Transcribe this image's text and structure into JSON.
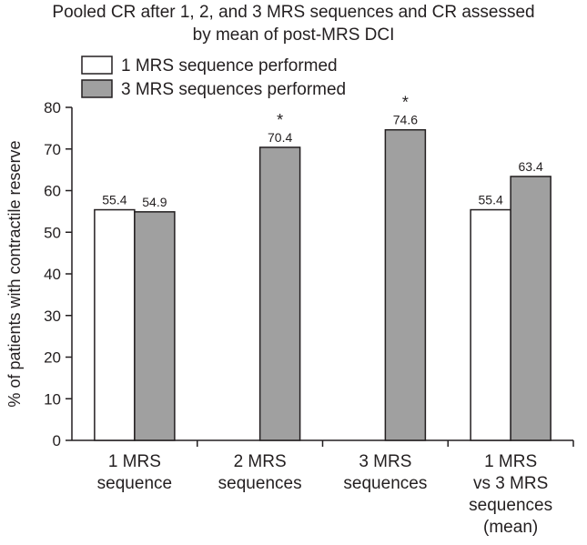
{
  "chart_data": {
    "type": "bar",
    "title": "Pooled CR after 1, 2, and 3 MRS sequences and CR assessed",
    "title_line2": "by mean of post-MRS DCI",
    "ylabel": "% of patients with contractile reserve",
    "xlabel": "",
    "ylim": [
      0,
      80
    ],
    "yticks": [
      0,
      10,
      20,
      30,
      40,
      50,
      60,
      70,
      80
    ],
    "grid": false,
    "legend_position": "top-left",
    "categories": [
      [
        "1 MRS",
        "sequence"
      ],
      [
        "2 MRS",
        "sequences"
      ],
      [
        "3 MRS",
        "sequences"
      ],
      [
        "1 MRS",
        "vs 3 MRS",
        "sequences",
        "(mean)"
      ]
    ],
    "series": [
      {
        "name": "1 MRS sequence performed",
        "color": "#ffffff",
        "values": [
          55.4,
          null,
          null,
          55.4
        ],
        "labels": [
          "55.4",
          "",
          "",
          "55.4"
        ]
      },
      {
        "name": "3 MRS sequences performed",
        "color": "#a0a0a0",
        "values": [
          54.9,
          70.4,
          74.6,
          63.4
        ],
        "labels": [
          "54.9",
          "70.4",
          "74.6",
          "63.4"
        ]
      }
    ],
    "annotations": [
      {
        "category_index": 1,
        "series_index": 1,
        "text": "*"
      },
      {
        "category_index": 2,
        "series_index": 1,
        "text": "*"
      }
    ]
  }
}
